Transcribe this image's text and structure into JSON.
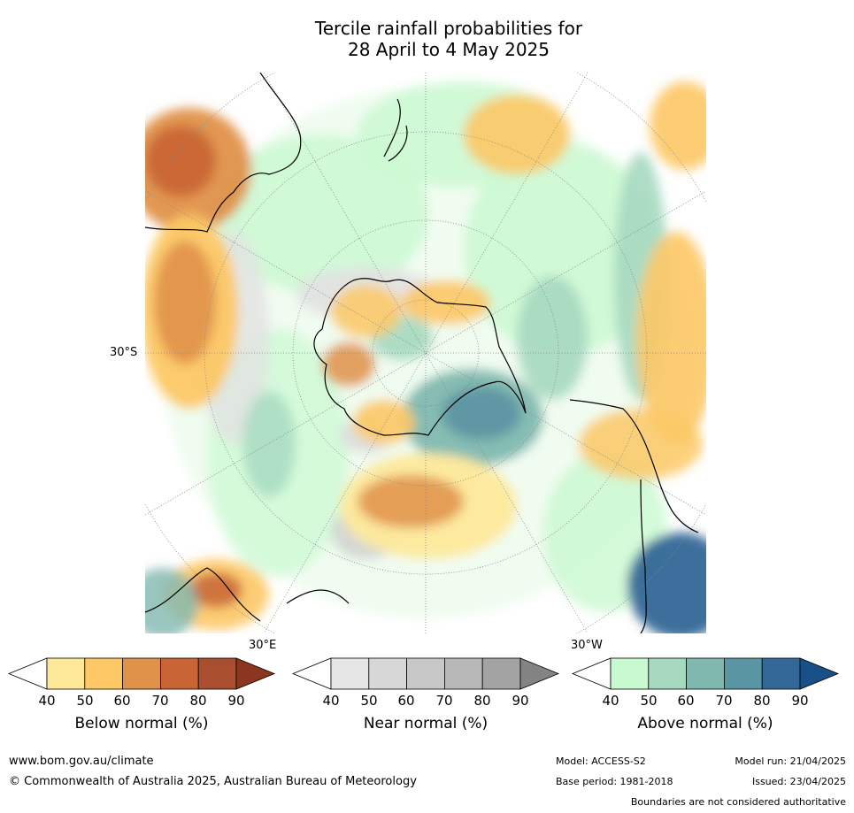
{
  "title_line1": "Tercile rainfall probabilities for",
  "title_line2": "28 April to 4 May 2025",
  "map": {
    "labels": {
      "lat_30s": "30°S",
      "lon_30e": "30°E",
      "lon_30w": "30°W"
    }
  },
  "colorbars": [
    {
      "label": "Below normal (%)",
      "ticks": [
        "40",
        "50",
        "60",
        "70",
        "80",
        "90"
      ],
      "colors": [
        "#ffffff",
        "#fee99b",
        "#fdc865",
        "#e0914a",
        "#c96434",
        "#a94e2f",
        "#8c3620"
      ]
    },
    {
      "label": "Near normal (%)",
      "ticks": [
        "40",
        "50",
        "60",
        "70",
        "80",
        "90"
      ],
      "colors": [
        "#ffffff",
        "#e6e6e6",
        "#d7d7d7",
        "#c8c8c8",
        "#b8b8b8",
        "#a3a3a3",
        "#838383"
      ]
    },
    {
      "label": "Above normal (%)",
      "ticks": [
        "40",
        "50",
        "60",
        "70",
        "80",
        "90"
      ],
      "colors": [
        "#ffffff",
        "#c8f9d0",
        "#a6d9c0",
        "#80b8b0",
        "#5a95a3",
        "#336797",
        "#174f86"
      ]
    }
  ],
  "footer": {
    "website": "www.bom.gov.au/climate",
    "copyright": "© Commonwealth of Australia 2025, Australian Bureau of Meteorology",
    "model": "Model: ACCESS-S2",
    "base_period": "Base period: 1981-2018",
    "model_run": "Model run: 21/04/2025",
    "issued": "Issued: 23/04/2025",
    "disclaimer": "Boundaries are not considered authoritative"
  }
}
